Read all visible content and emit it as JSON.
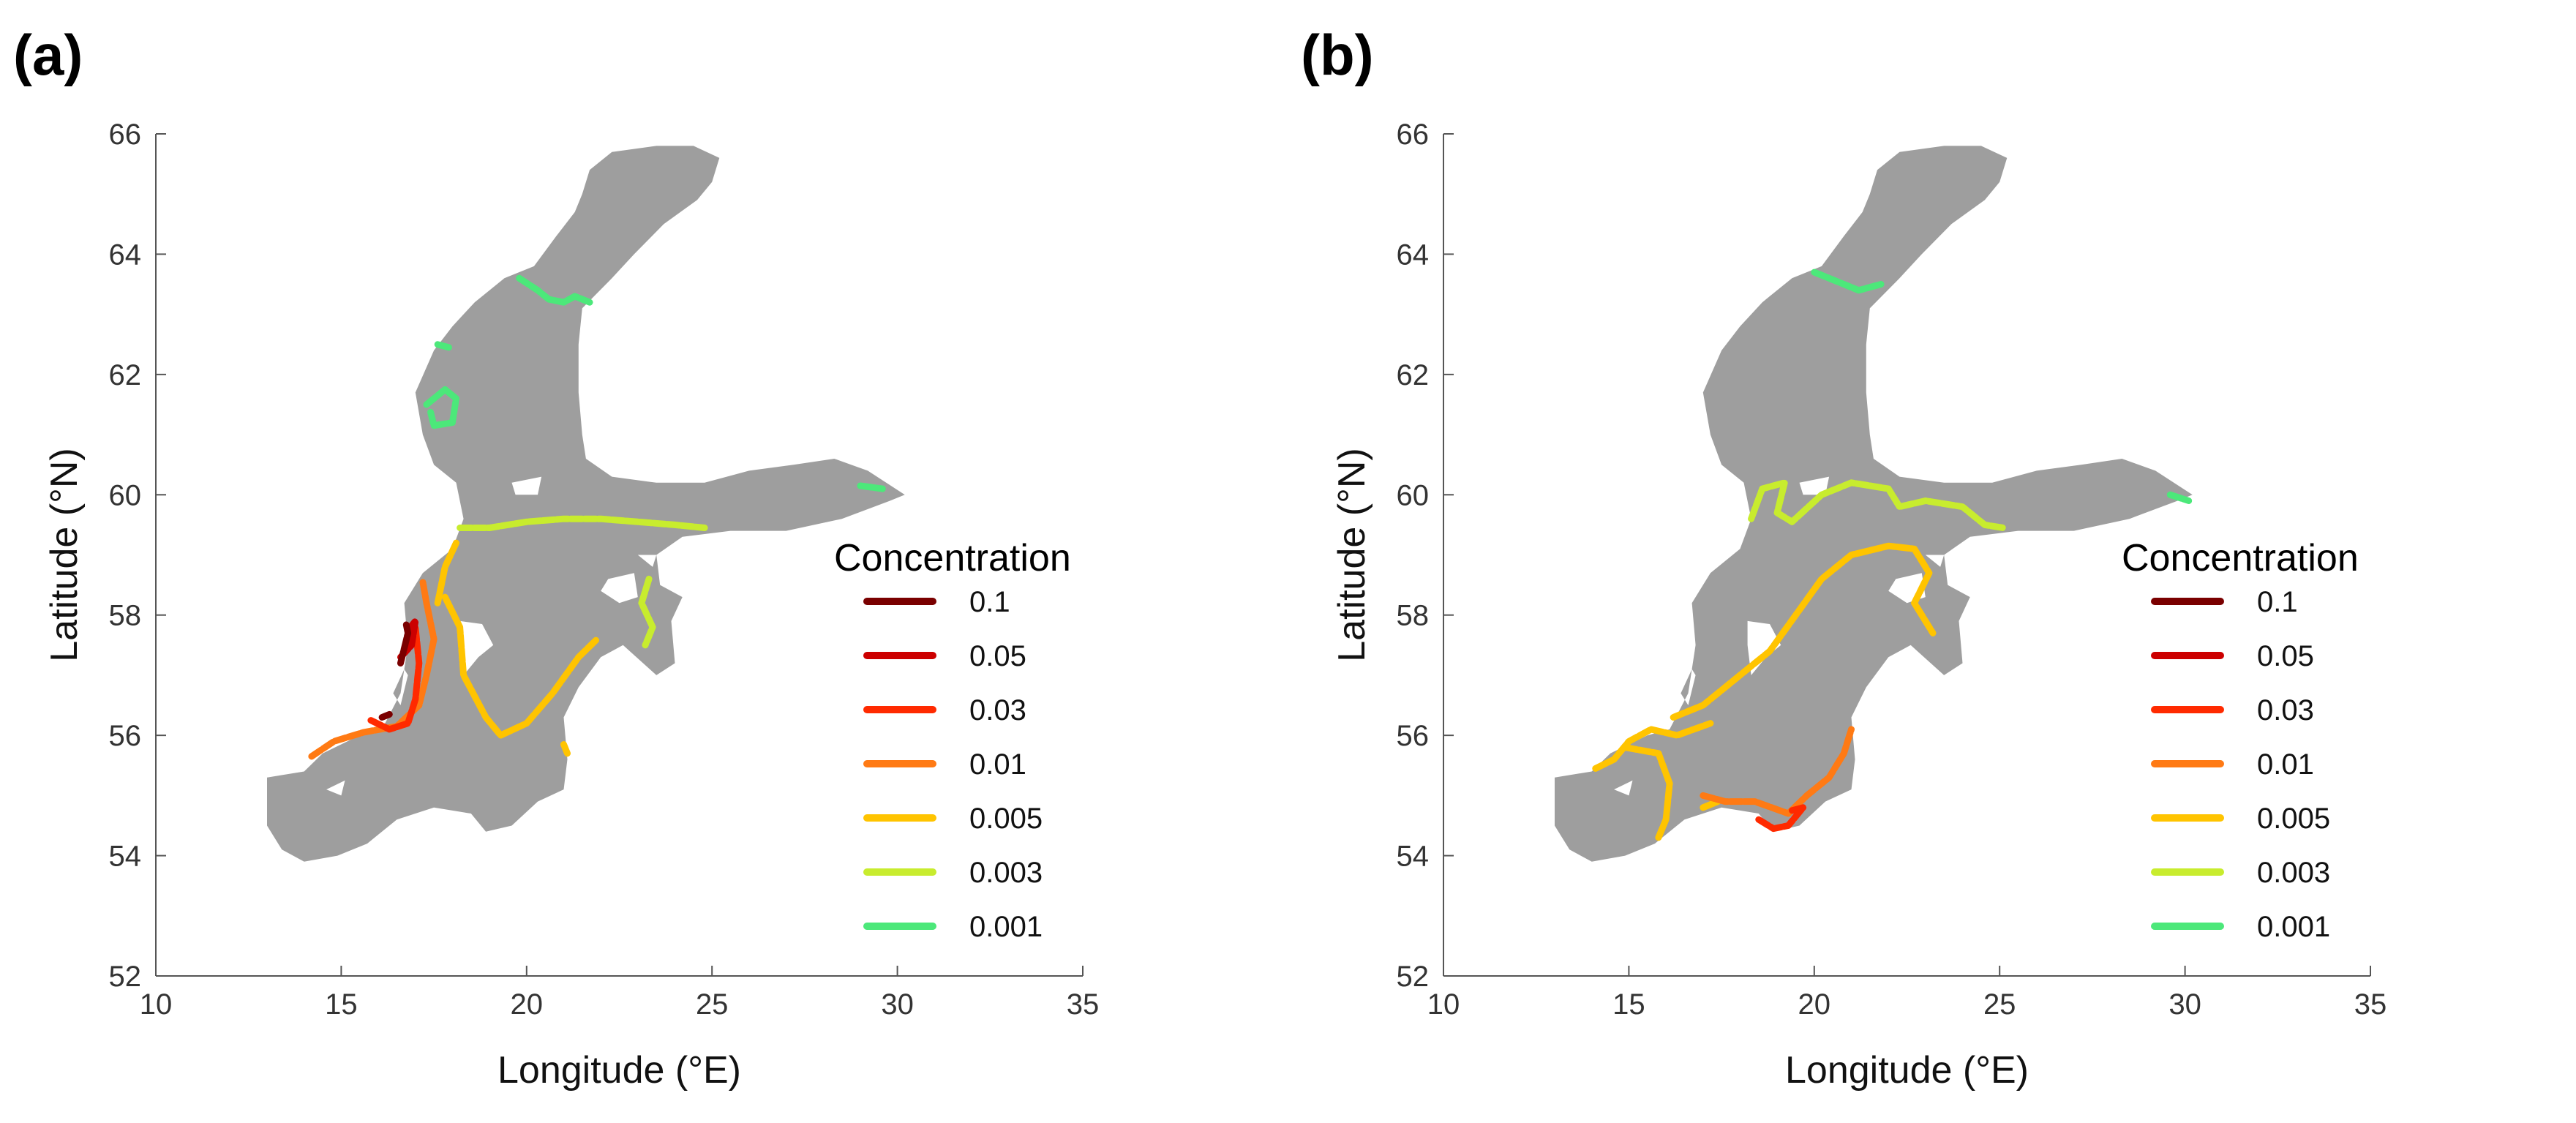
{
  "panels": [
    {
      "label": "(a)"
    },
    {
      "label": "(b)"
    }
  ],
  "colors": {
    "land": "#9e9e9e",
    "axis": "#555555",
    "levels": [
      "#7a0000",
      "#cc0000",
      "#ff2a00",
      "#ff7a14",
      "#ffc400",
      "#c8ec2e",
      "#4ce87a"
    ]
  },
  "chart_data": [
    {
      "type": "map",
      "panel": "(a)",
      "xlabel": "Longitude (°E)",
      "ylabel": "Latitude (°N)",
      "xlim": [
        10,
        35
      ],
      "ylim": [
        52,
        66
      ],
      "xticks": [
        "10",
        "15",
        "20",
        "25",
        "30",
        "35"
      ],
      "yticks": [
        "52",
        "54",
        "56",
        "58",
        "60",
        "62",
        "64",
        "66"
      ],
      "legend": {
        "title": "Concentration",
        "position": "right",
        "entries": [
          "0.1",
          "0.05",
          "0.03",
          "0.01",
          "0.005",
          "0.003",
          "0.001"
        ]
      },
      "contours": [
        {
          "level": "0.001",
          "points": [
            [
              19.8,
              63.6
            ],
            [
              20.3,
              63.4
            ],
            [
              20.6,
              63.25
            ],
            [
              21.0,
              63.2
            ],
            [
              21.3,
              63.3
            ],
            [
              21.7,
              63.2
            ]
          ]
        },
        {
          "level": "0.001",
          "points": [
            [
              17.6,
              62.5
            ],
            [
              17.9,
              62.45
            ]
          ]
        },
        {
          "level": "0.001",
          "points": [
            [
              17.3,
              61.5
            ],
            [
              17.8,
              61.75
            ],
            [
              18.1,
              61.6
            ],
            [
              18.0,
              61.2
            ],
            [
              17.5,
              61.15
            ],
            [
              17.4,
              61.4
            ]
          ]
        },
        {
          "level": "0.001",
          "points": [
            [
              29.0,
              60.15
            ],
            [
              29.6,
              60.1
            ]
          ]
        },
        {
          "level": "0.003",
          "points": [
            [
              18.2,
              59.45
            ],
            [
              19.0,
              59.45
            ],
            [
              20.0,
              59.55
            ],
            [
              21.0,
              59.6
            ],
            [
              22.0,
              59.6
            ],
            [
              23.0,
              59.55
            ],
            [
              24.0,
              59.5
            ],
            [
              24.8,
              59.45
            ]
          ]
        },
        {
          "level": "0.003",
          "points": [
            [
              23.3,
              58.6
            ],
            [
              23.1,
              58.2
            ],
            [
              23.4,
              57.8
            ],
            [
              23.2,
              57.5
            ]
          ]
        },
        {
          "level": "0.005",
          "points": [
            [
              17.8,
              58.3
            ],
            [
              18.2,
              57.8
            ],
            [
              18.3,
              57.0
            ],
            [
              18.9,
              56.3
            ],
            [
              19.3,
              56.0
            ],
            [
              20.0,
              56.2
            ],
            [
              20.7,
              56.7
            ],
            [
              21.4,
              57.3
            ],
            [
              21.9,
              57.6
            ]
          ]
        },
        {
          "level": "0.005",
          "points": [
            [
              21.0,
              55.85
            ],
            [
              21.1,
              55.7
            ]
          ]
        },
        {
          "level": "0.005",
          "points": [
            [
              18.1,
              59.2
            ],
            [
              17.8,
              58.8
            ],
            [
              17.6,
              58.2
            ]
          ]
        },
        {
          "level": "0.01",
          "points": [
            [
              14.2,
              55.65
            ],
            [
              14.8,
              55.9
            ],
            [
              15.6,
              56.05
            ],
            [
              16.5,
              56.15
            ],
            [
              17.1,
              56.5
            ],
            [
              17.3,
              57.0
            ],
            [
              17.5,
              57.6
            ],
            [
              17.3,
              58.2
            ],
            [
              17.2,
              58.55
            ]
          ]
        },
        {
          "level": "0.03",
          "points": [
            [
              15.8,
              56.25
            ],
            [
              16.3,
              56.1
            ],
            [
              16.8,
              56.2
            ],
            [
              17.0,
              56.6
            ],
            [
              17.1,
              57.2
            ],
            [
              17.0,
              57.8
            ]
          ]
        },
        {
          "level": "0.05",
          "points": [
            [
              16.6,
              57.3
            ],
            [
              16.9,
              57.5
            ],
            [
              17.0,
              57.9
            ],
            [
              16.8,
              57.75
            ]
          ]
        },
        {
          "level": "0.1",
          "points": [
            [
              16.6,
              57.2
            ],
            [
              16.7,
              57.45
            ],
            [
              16.8,
              57.7
            ],
            [
              16.75,
              57.85
            ]
          ]
        },
        {
          "level": "0.1",
          "points": [
            [
              16.1,
              56.3
            ],
            [
              16.3,
              56.35
            ]
          ]
        }
      ]
    },
    {
      "type": "map",
      "panel": "(b)",
      "xlabel": "Longitude (°E)",
      "ylabel": "Latitude (°N)",
      "xlim": [
        10,
        35
      ],
      "ylim": [
        52,
        66
      ],
      "xticks": [
        "10",
        "15",
        "20",
        "25",
        "30",
        "35"
      ],
      "yticks": [
        "52",
        "54",
        "56",
        "58",
        "60",
        "62",
        "64",
        "66"
      ],
      "legend": {
        "title": "Concentration",
        "position": "right",
        "entries": [
          "0.1",
          "0.05",
          "0.03",
          "0.01",
          "0.005",
          "0.003",
          "0.001"
        ]
      },
      "contours": [
        {
          "level": "0.001",
          "points": [
            [
              20.0,
              63.7
            ],
            [
              20.6,
              63.55
            ],
            [
              21.2,
              63.4
            ],
            [
              21.8,
              63.5
            ]
          ]
        },
        {
          "level": "0.001",
          "points": [
            [
              29.6,
              60.0
            ],
            [
              30.1,
              59.9
            ]
          ]
        },
        {
          "level": "0.003",
          "points": [
            [
              18.3,
              59.6
            ],
            [
              18.6,
              60.1
            ],
            [
              19.2,
              60.2
            ],
            [
              19.0,
              59.7
            ],
            [
              19.4,
              59.55
            ],
            [
              20.2,
              60.0
            ],
            [
              21.0,
              60.2
            ],
            [
              22.0,
              60.1
            ],
            [
              22.3,
              59.8
            ],
            [
              23.0,
              59.9
            ],
            [
              24.0,
              59.8
            ],
            [
              24.6,
              59.5
            ],
            [
              25.1,
              59.45
            ]
          ]
        },
        {
          "level": "0.005",
          "points": [
            [
              16.2,
              56.3
            ],
            [
              17.0,
              56.5
            ],
            [
              18.0,
              57.0
            ],
            [
              18.8,
              57.4
            ],
            [
              19.5,
              58.0
            ],
            [
              20.2,
              58.6
            ],
            [
              21.0,
              59.0
            ],
            [
              22.0,
              59.15
            ],
            [
              22.7,
              59.1
            ],
            [
              23.1,
              58.7
            ],
            [
              22.7,
              58.2
            ],
            [
              23.2,
              57.7
            ]
          ]
        },
        {
          "level": "0.005",
          "points": [
            [
              14.1,
              55.45
            ],
            [
              14.6,
              55.6
            ],
            [
              15.0,
              55.9
            ],
            [
              15.6,
              56.1
            ],
            [
              16.3,
              56.0
            ],
            [
              17.2,
              56.2
            ]
          ]
        },
        {
          "level": "0.005",
          "points": [
            [
              14.9,
              55.8
            ],
            [
              15.8,
              55.7
            ],
            [
              16.1,
              55.2
            ],
            [
              16.0,
              54.6
            ],
            [
              15.8,
              54.3
            ]
          ]
        },
        {
          "level": "0.005",
          "points": [
            [
              17.0,
              54.8
            ],
            [
              17.4,
              54.9
            ]
          ]
        },
        {
          "level": "0.01",
          "points": [
            [
              17.0,
              55.0
            ],
            [
              17.6,
              54.9
            ],
            [
              18.4,
              54.9
            ],
            [
              19.3,
              54.7
            ],
            [
              19.8,
              55.0
            ],
            [
              20.4,
              55.3
            ],
            [
              20.8,
              55.7
            ],
            [
              21.0,
              56.1
            ]
          ]
        },
        {
          "level": "0.03",
          "points": [
            [
              18.5,
              54.6
            ],
            [
              18.9,
              54.45
            ],
            [
              19.3,
              54.5
            ],
            [
              19.7,
              54.8
            ],
            [
              19.4,
              54.75
            ]
          ]
        }
      ]
    }
  ]
}
